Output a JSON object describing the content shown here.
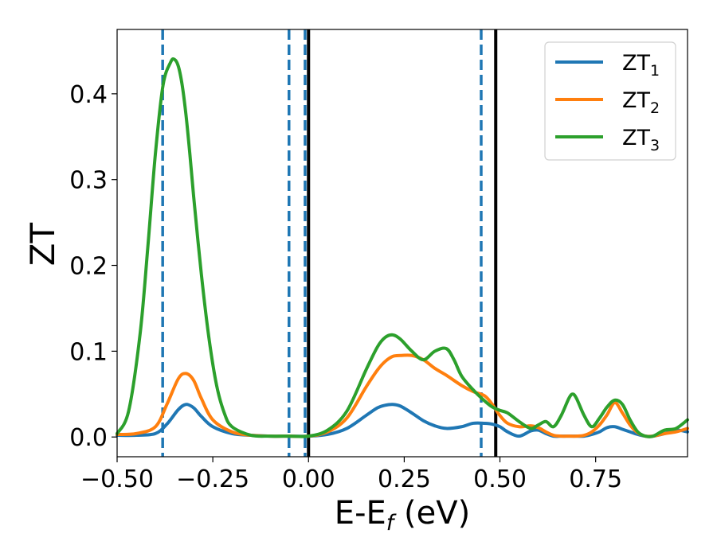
{
  "chart_data": {
    "type": "line",
    "title": "",
    "xlabel_main": "E-E",
    "xlabel_sub": "f",
    "xlabel_unit": " (eV)",
    "ylabel": "ZT",
    "xlim": [
      -0.5,
      0.99
    ],
    "ylim": [
      -0.023,
      0.475
    ],
    "xticks": [
      -0.5,
      -0.25,
      0.0,
      0.25,
      0.5,
      0.75
    ],
    "xtick_labels": [
      "−0.50",
      "−0.25",
      "0.00",
      "0.25",
      "0.50",
      "0.75"
    ],
    "yticks": [
      0.0,
      0.1,
      0.2,
      0.3,
      0.4
    ],
    "ytick_labels": [
      "0.0",
      "0.1",
      "0.2",
      "0.3",
      "0.4"
    ],
    "grid": false,
    "legend_position": "top-right",
    "series": [
      {
        "name": "ZT",
        "subscript": "1",
        "color": "#1f77b4",
        "x": [
          -0.5,
          -0.45,
          -0.4,
          -0.37,
          -0.34,
          -0.32,
          -0.3,
          -0.28,
          -0.25,
          -0.2,
          -0.15,
          -0.1,
          -0.05,
          0.0,
          0.05,
          0.1,
          0.15,
          0.18,
          0.2,
          0.22,
          0.24,
          0.27,
          0.3,
          0.33,
          0.36,
          0.4,
          0.43,
          0.46,
          0.48,
          0.5,
          0.52,
          0.55,
          0.58,
          0.6,
          0.62,
          0.64,
          0.66,
          0.68,
          0.7,
          0.72,
          0.74,
          0.76,
          0.78,
          0.8,
          0.82,
          0.84,
          0.86,
          0.88,
          0.9,
          0.93,
          0.96,
          0.99
        ],
        "y": [
          0.002,
          0.002,
          0.004,
          0.015,
          0.032,
          0.038,
          0.034,
          0.024,
          0.012,
          0.004,
          0.002,
          0.001,
          0.001,
          0.001,
          0.003,
          0.01,
          0.025,
          0.034,
          0.037,
          0.038,
          0.036,
          0.028,
          0.019,
          0.013,
          0.01,
          0.012,
          0.016,
          0.016,
          0.015,
          0.012,
          0.006,
          0.001,
          0.007,
          0.008,
          0.004,
          0.001,
          0.001,
          0.001,
          0.001,
          0.001,
          0.003,
          0.006,
          0.011,
          0.012,
          0.009,
          0.006,
          0.003,
          0.001,
          0.001,
          0.004,
          0.008,
          0.006
        ]
      },
      {
        "name": "ZT",
        "subscript": "2",
        "color": "#ff7f0e",
        "x": [
          -0.5,
          -0.45,
          -0.4,
          -0.37,
          -0.34,
          -0.32,
          -0.3,
          -0.28,
          -0.25,
          -0.2,
          -0.15,
          -0.1,
          -0.05,
          0.0,
          0.05,
          0.1,
          0.15,
          0.18,
          0.2,
          0.22,
          0.24,
          0.27,
          0.3,
          0.33,
          0.36,
          0.4,
          0.43,
          0.46,
          0.48,
          0.5,
          0.52,
          0.55,
          0.58,
          0.6,
          0.62,
          0.64,
          0.66,
          0.68,
          0.7,
          0.72,
          0.74,
          0.76,
          0.78,
          0.8,
          0.82,
          0.84,
          0.86,
          0.88,
          0.9,
          0.93,
          0.96,
          0.99
        ],
        "y": [
          0.003,
          0.004,
          0.012,
          0.038,
          0.068,
          0.074,
          0.066,
          0.045,
          0.02,
          0.006,
          0.002,
          0.001,
          0.001,
          0.001,
          0.006,
          0.022,
          0.058,
          0.078,
          0.088,
          0.094,
          0.095,
          0.095,
          0.09,
          0.08,
          0.072,
          0.06,
          0.053,
          0.048,
          0.038,
          0.025,
          0.016,
          0.012,
          0.013,
          0.011,
          0.006,
          0.002,
          0.001,
          0.001,
          0.001,
          0.002,
          0.006,
          0.014,
          0.026,
          0.04,
          0.028,
          0.014,
          0.005,
          0.001,
          0.001,
          0.004,
          0.006,
          0.01
        ]
      },
      {
        "name": "ZT",
        "subscript": "3",
        "color": "#2ca02c",
        "x": [
          -0.5,
          -0.47,
          -0.44,
          -0.42,
          -0.4,
          -0.38,
          -0.36,
          -0.35,
          -0.34,
          -0.33,
          -0.32,
          -0.31,
          -0.3,
          -0.28,
          -0.26,
          -0.24,
          -0.22,
          -0.2,
          -0.15,
          -0.1,
          -0.05,
          0.0,
          0.05,
          0.1,
          0.15,
          0.18,
          0.2,
          0.22,
          0.24,
          0.27,
          0.3,
          0.33,
          0.36,
          0.38,
          0.4,
          0.43,
          0.46,
          0.48,
          0.5,
          0.52,
          0.55,
          0.58,
          0.6,
          0.62,
          0.64,
          0.66,
          0.68,
          0.69,
          0.7,
          0.72,
          0.74,
          0.76,
          0.78,
          0.8,
          0.82,
          0.84,
          0.86,
          0.88,
          0.9,
          0.93,
          0.96,
          0.99
        ],
        "y": [
          0.004,
          0.03,
          0.12,
          0.22,
          0.33,
          0.41,
          0.437,
          0.44,
          0.432,
          0.41,
          0.375,
          0.33,
          0.28,
          0.19,
          0.115,
          0.06,
          0.028,
          0.012,
          0.002,
          0.001,
          0.001,
          0.001,
          0.008,
          0.03,
          0.078,
          0.105,
          0.116,
          0.119,
          0.114,
          0.1,
          0.09,
          0.1,
          0.103,
          0.09,
          0.071,
          0.055,
          0.042,
          0.035,
          0.031,
          0.028,
          0.018,
          0.01,
          0.014,
          0.018,
          0.012,
          0.025,
          0.045,
          0.05,
          0.045,
          0.025,
          0.012,
          0.022,
          0.035,
          0.043,
          0.038,
          0.02,
          0.006,
          0.001,
          0.001,
          0.008,
          0.01,
          0.02
        ]
      }
    ],
    "vlines": [
      {
        "x": -0.381,
        "style": "dashed",
        "color": "#1f77b4"
      },
      {
        "x": -0.051,
        "style": "dashed",
        "color": "#1f77b4"
      },
      {
        "x": -0.009,
        "style": "dashed",
        "color": "#1f77b4"
      },
      {
        "x": 0.451,
        "style": "dashed",
        "color": "#1f77b4"
      },
      {
        "x": 0.0,
        "style": "solid",
        "color": "#000000"
      },
      {
        "x": 0.489,
        "style": "solid",
        "color": "#000000"
      }
    ]
  }
}
